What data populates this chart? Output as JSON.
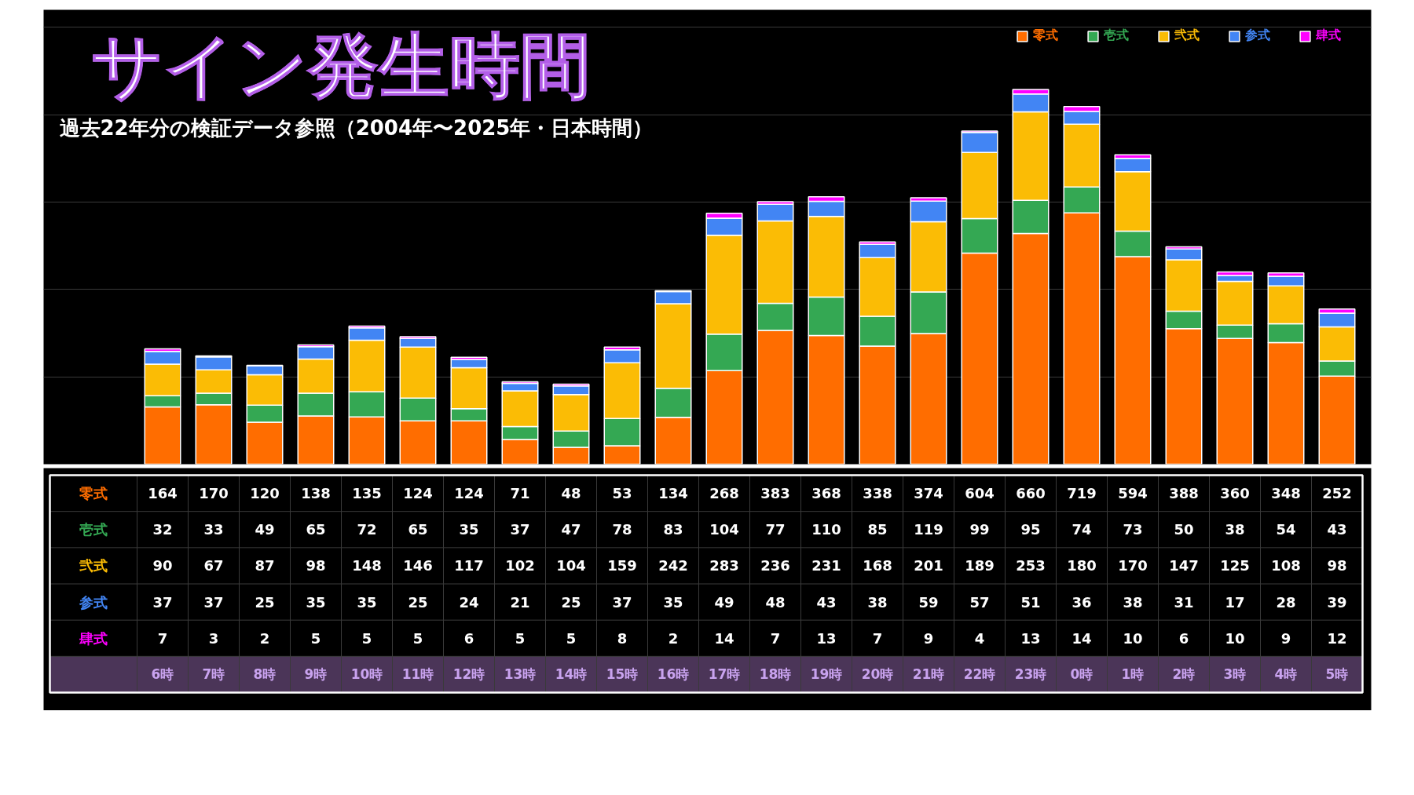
{
  "chart_data": {
    "type": "bar",
    "title": "サイン発生時間",
    "subtitle": "過去22年分の検証データ参照（2004年〜2025年・日本時間）",
    "categories": [
      "6時",
      "7時",
      "8時",
      "9時",
      "10時",
      "11時",
      "12時",
      "13時",
      "14時",
      "15時",
      "16時",
      "17時",
      "18時",
      "19時",
      "20時",
      "21時",
      "22時",
      "23時",
      "0時",
      "1時",
      "2時",
      "3時",
      "4時",
      "5時"
    ],
    "stacked": true,
    "series": [
      {
        "name": "零式",
        "color": "#ff6d00",
        "values": [
          164,
          170,
          120,
          138,
          135,
          124,
          124,
          71,
          48,
          53,
          134,
          268,
          383,
          368,
          338,
          374,
          604,
          660,
          719,
          594,
          388,
          360,
          348,
          252
        ]
      },
      {
        "name": "壱式",
        "color": "#34a853",
        "values": [
          32,
          33,
          49,
          65,
          72,
          65,
          35,
          37,
          47,
          78,
          83,
          104,
          77,
          110,
          85,
          119,
          99,
          95,
          74,
          73,
          50,
          38,
          54,
          43
        ]
      },
      {
        "name": "弐式",
        "color": "#fbbc05",
        "values": [
          90,
          67,
          87,
          98,
          148,
          146,
          117,
          102,
          104,
          159,
          242,
          283,
          236,
          231,
          168,
          201,
          189,
          253,
          180,
          170,
          147,
          125,
          108,
          98
        ]
      },
      {
        "name": "参式",
        "color": "#4285f4",
        "values": [
          37,
          37,
          25,
          35,
          35,
          25,
          24,
          21,
          25,
          37,
          35,
          49,
          48,
          43,
          38,
          59,
          57,
          51,
          36,
          38,
          31,
          17,
          28,
          39
        ]
      },
      {
        "name": "肆式",
        "color": "#ff00ff",
        "values": [
          7,
          3,
          2,
          5,
          5,
          5,
          6,
          5,
          5,
          8,
          2,
          14,
          7,
          13,
          7,
          9,
          4,
          13,
          14,
          10,
          6,
          10,
          9,
          12
        ]
      }
    ],
    "ylim": [
      0,
      1300
    ],
    "yticks": [
      {
        "value": 250,
        "label": null
      },
      {
        "value": 500,
        "label": null
      },
      {
        "value": 750,
        "label": null
      },
      {
        "value": 1000,
        "label": null
      },
      {
        "value": 1250,
        "label": null
      }
    ],
    "grid": "y",
    "legend": "top right",
    "tick_labels": "x",
    "data_labels": true
  }
}
